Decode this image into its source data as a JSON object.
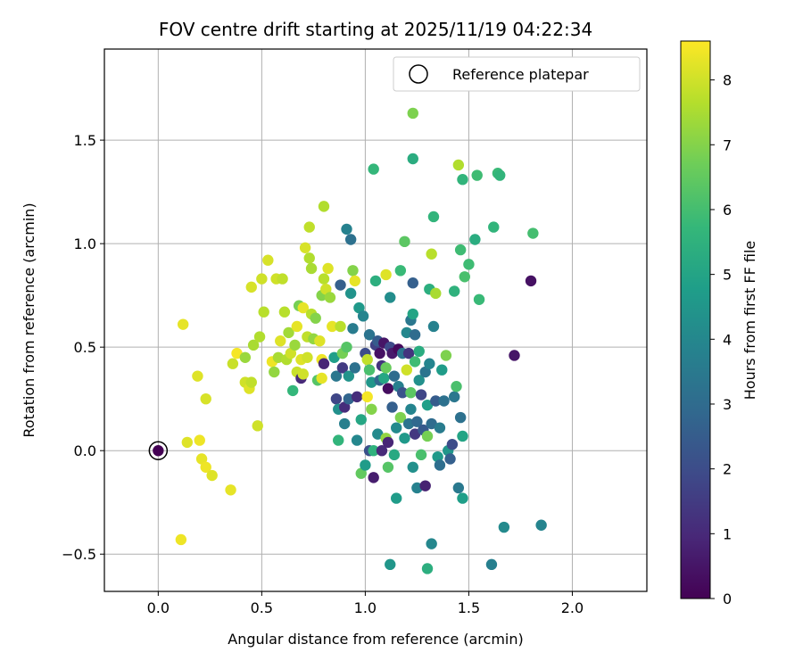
{
  "chart_data": {
    "type": "scatter",
    "title": "FOV centre drift starting at 2025/11/19 04:22:34",
    "xlabel": "Angular distance from reference (arcmin)",
    "ylabel": "Rotation from reference (arcmin)",
    "xlim": [
      -0.26,
      2.36
    ],
    "ylim": [
      -0.68,
      1.94
    ],
    "xticks": [
      0.0,
      0.5,
      1.0,
      1.5,
      2.0
    ],
    "xtick_labels": [
      "0.0",
      "0.5",
      "1.0",
      "1.5",
      "2.0"
    ],
    "yticks": [
      -0.5,
      0.0,
      0.5,
      1.0,
      1.5
    ],
    "ytick_labels": [
      "−0.5",
      "0.0",
      "0.5",
      "1.0",
      "1.5"
    ],
    "grid": true,
    "legend": {
      "position": "top-right",
      "entries": [
        "Reference platepar"
      ]
    },
    "colorbar": {
      "label": "Hours from first FF file",
      "range": [
        0,
        8.6
      ],
      "ticks": [
        0,
        1,
        2,
        3,
        4,
        5,
        6,
        7,
        8
      ],
      "tick_labels": [
        "0",
        "1",
        "2",
        "3",
        "4",
        "5",
        "6",
        "7",
        "8"
      ],
      "colormap": "viridis"
    },
    "reference_point": {
      "x": 0.0,
      "y": 0.0,
      "c": 0.0
    },
    "points": [
      {
        "x": 0.11,
        "y": -0.43,
        "c": 8.4
      },
      {
        "x": 0.12,
        "y": 0.61,
        "c": 8.3
      },
      {
        "x": 0.14,
        "y": 0.04,
        "c": 8.2
      },
      {
        "x": 0.19,
        "y": 0.36,
        "c": 8.2
      },
      {
        "x": 0.2,
        "y": 0.05,
        "c": 8.4
      },
      {
        "x": 0.21,
        "y": -0.04,
        "c": 8.3
      },
      {
        "x": 0.23,
        "y": -0.08,
        "c": 8.4
      },
      {
        "x": 0.23,
        "y": 0.25,
        "c": 8.1
      },
      {
        "x": 0.26,
        "y": -0.12,
        "c": 8.2
      },
      {
        "x": 0.35,
        "y": -0.19,
        "c": 8.3
      },
      {
        "x": 0.36,
        "y": 0.42,
        "c": 7.9
      },
      {
        "x": 0.38,
        "y": 0.47,
        "c": 8.5
      },
      {
        "x": 0.42,
        "y": 0.33,
        "c": 8.0
      },
      {
        "x": 0.42,
        "y": 0.45,
        "c": 7.3
      },
      {
        "x": 0.44,
        "y": 0.3,
        "c": 8.2
      },
      {
        "x": 0.45,
        "y": 0.33,
        "c": 7.8
      },
      {
        "x": 0.45,
        "y": 0.79,
        "c": 8.1
      },
      {
        "x": 0.46,
        "y": 0.51,
        "c": 7.5
      },
      {
        "x": 0.48,
        "y": 0.12,
        "c": 8.0
      },
      {
        "x": 0.49,
        "y": 0.55,
        "c": 7.6
      },
      {
        "x": 0.5,
        "y": 0.83,
        "c": 8.0
      },
      {
        "x": 0.51,
        "y": 0.67,
        "c": 7.7
      },
      {
        "x": 0.53,
        "y": 0.92,
        "c": 8.1
      },
      {
        "x": 0.55,
        "y": 0.43,
        "c": 8.4
      },
      {
        "x": 0.56,
        "y": 0.38,
        "c": 7.2
      },
      {
        "x": 0.57,
        "y": 0.83,
        "c": 8.0
      },
      {
        "x": 0.58,
        "y": 0.45,
        "c": 7.5
      },
      {
        "x": 0.59,
        "y": 0.53,
        "c": 8.2
      },
      {
        "x": 0.6,
        "y": 0.83,
        "c": 7.8
      },
      {
        "x": 0.61,
        "y": 0.67,
        "c": 7.7
      },
      {
        "x": 0.62,
        "y": 0.44,
        "c": 7.6
      },
      {
        "x": 0.63,
        "y": 0.57,
        "c": 7.4
      },
      {
        "x": 0.64,
        "y": 0.47,
        "c": 8.0
      },
      {
        "x": 0.65,
        "y": 0.29,
        "c": 5.7
      },
      {
        "x": 0.66,
        "y": 0.51,
        "c": 7.3
      },
      {
        "x": 0.67,
        "y": 0.6,
        "c": 8.3
      },
      {
        "x": 0.67,
        "y": 0.38,
        "c": 7.9
      },
      {
        "x": 0.68,
        "y": 0.7,
        "c": 6.8
      },
      {
        "x": 0.69,
        "y": 0.35,
        "c": 1.0
      },
      {
        "x": 0.69,
        "y": 0.44,
        "c": 8.2
      },
      {
        "x": 0.7,
        "y": 0.69,
        "c": 8.3
      },
      {
        "x": 0.7,
        "y": 0.37,
        "c": 8.0
      },
      {
        "x": 0.71,
        "y": 0.98,
        "c": 8.1
      },
      {
        "x": 0.72,
        "y": 0.55,
        "c": 7.8
      },
      {
        "x": 0.72,
        "y": 0.45,
        "c": 8.0
      },
      {
        "x": 0.73,
        "y": 1.08,
        "c": 7.8
      },
      {
        "x": 0.73,
        "y": 0.93,
        "c": 7.6
      },
      {
        "x": 0.74,
        "y": 0.88,
        "c": 7.5
      },
      {
        "x": 0.74,
        "y": 0.66,
        "c": 7.7
      },
      {
        "x": 0.75,
        "y": 0.54,
        "c": 7.2
      },
      {
        "x": 0.76,
        "y": 0.64,
        "c": 7.0
      },
      {
        "x": 0.77,
        "y": 0.34,
        "c": 6.3
      },
      {
        "x": 0.78,
        "y": 0.53,
        "c": 8.2
      },
      {
        "x": 0.79,
        "y": 0.75,
        "c": 7.0
      },
      {
        "x": 0.79,
        "y": 0.44,
        "c": 8.4
      },
      {
        "x": 0.79,
        "y": 0.35,
        "c": 8.3
      },
      {
        "x": 0.8,
        "y": 0.83,
        "c": 7.7
      },
      {
        "x": 0.8,
        "y": 1.18,
        "c": 7.6
      },
      {
        "x": 0.8,
        "y": 0.42,
        "c": 0.9
      },
      {
        "x": 0.81,
        "y": 0.78,
        "c": 8.0
      },
      {
        "x": 0.82,
        "y": 0.88,
        "c": 8.2
      },
      {
        "x": 0.83,
        "y": 0.74,
        "c": 7.3
      },
      {
        "x": 0.84,
        "y": 0.6,
        "c": 8.3
      },
      {
        "x": 0.85,
        "y": 0.45,
        "c": 4.8
      },
      {
        "x": 0.86,
        "y": 0.36,
        "c": 3.4
      },
      {
        "x": 0.86,
        "y": 0.25,
        "c": 1.8
      },
      {
        "x": 0.87,
        "y": 0.05,
        "c": 5.6
      },
      {
        "x": 0.87,
        "y": 0.2,
        "c": 4.3
      },
      {
        "x": 0.88,
        "y": 0.6,
        "c": 7.7
      },
      {
        "x": 0.88,
        "y": 0.8,
        "c": 2.6
      },
      {
        "x": 0.89,
        "y": 0.4,
        "c": 1.5
      },
      {
        "x": 0.89,
        "y": 0.47,
        "c": 6.8
      },
      {
        "x": 0.9,
        "y": 0.21,
        "c": 1.1
      },
      {
        "x": 0.9,
        "y": 0.13,
        "c": 3.7
      },
      {
        "x": 0.91,
        "y": 1.07,
        "c": 3.8
      },
      {
        "x": 0.91,
        "y": 0.5,
        "c": 6.3
      },
      {
        "x": 0.92,
        "y": 0.36,
        "c": 4.4
      },
      {
        "x": 0.92,
        "y": 0.25,
        "c": 2.8
      },
      {
        "x": 0.93,
        "y": 1.02,
        "c": 3.2
      },
      {
        "x": 0.93,
        "y": 0.76,
        "c": 4.4
      },
      {
        "x": 0.94,
        "y": 0.87,
        "c": 7.0
      },
      {
        "x": 0.94,
        "y": 0.59,
        "c": 3.6
      },
      {
        "x": 0.95,
        "y": 0.82,
        "c": 8.3
      },
      {
        "x": 0.95,
        "y": 0.4,
        "c": 3.2
      },
      {
        "x": 0.96,
        "y": 0.26,
        "c": 1.1
      },
      {
        "x": 0.96,
        "y": 0.05,
        "c": 4.0
      },
      {
        "x": 0.97,
        "y": 0.69,
        "c": 4.6
      },
      {
        "x": 0.98,
        "y": -0.11,
        "c": 6.5
      },
      {
        "x": 0.98,
        "y": 0.15,
        "c": 5.1
      },
      {
        "x": 0.99,
        "y": 0.65,
        "c": 3.9
      },
      {
        "x": 1.0,
        "y": -0.07,
        "c": 4.7
      },
      {
        "x": 1.0,
        "y": 0.47,
        "c": 2.0
      },
      {
        "x": 1.01,
        "y": 0.26,
        "c": 8.5
      },
      {
        "x": 1.01,
        "y": 0.44,
        "c": 7.8
      },
      {
        "x": 1.02,
        "y": 0.56,
        "c": 3.3
      },
      {
        "x": 1.02,
        "y": 0.39,
        "c": 6.1
      },
      {
        "x": 1.02,
        "y": 0.0,
        "c": 2.1
      },
      {
        "x": 1.03,
        "y": 0.33,
        "c": 4.5
      },
      {
        "x": 1.03,
        "y": 0.2,
        "c": 7.0
      },
      {
        "x": 1.04,
        "y": 1.36,
        "c": 5.7
      },
      {
        "x": 1.04,
        "y": 0.0,
        "c": 5.5
      },
      {
        "x": 1.04,
        "y": -0.13,
        "c": 0.7
      },
      {
        "x": 1.05,
        "y": 0.51,
        "c": 1.7
      },
      {
        "x": 1.05,
        "y": 0.82,
        "c": 5.4
      },
      {
        "x": 1.06,
        "y": 0.08,
        "c": 4.1
      },
      {
        "x": 1.06,
        "y": 0.53,
        "c": 2.5
      },
      {
        "x": 1.07,
        "y": 0.34,
        "c": 2.9
      },
      {
        "x": 1.07,
        "y": 0.47,
        "c": 0.4
      },
      {
        "x": 1.08,
        "y": 0.0,
        "c": 1.0
      },
      {
        "x": 1.08,
        "y": 0.41,
        "c": 1.3
      },
      {
        "x": 1.09,
        "y": 0.35,
        "c": 5.1
      },
      {
        "x": 1.09,
        "y": 0.52,
        "c": 0.5
      },
      {
        "x": 1.1,
        "y": 0.06,
        "c": 7.2
      },
      {
        "x": 1.1,
        "y": 0.85,
        "c": 8.2
      },
      {
        "x": 1.1,
        "y": 0.4,
        "c": 6.6
      },
      {
        "x": 1.11,
        "y": 0.04,
        "c": 0.9
      },
      {
        "x": 1.11,
        "y": 0.3,
        "c": 0.3
      },
      {
        "x": 1.11,
        "y": -0.08,
        "c": 6.3
      },
      {
        "x": 1.12,
        "y": 0.5,
        "c": 1.9
      },
      {
        "x": 1.12,
        "y": 0.74,
        "c": 4.2
      },
      {
        "x": 1.12,
        "y": -0.55,
        "c": 4.5
      },
      {
        "x": 1.13,
        "y": 0.21,
        "c": 2.6
      },
      {
        "x": 1.13,
        "y": 0.47,
        "c": 0.6
      },
      {
        "x": 1.14,
        "y": 0.36,
        "c": 3.0
      },
      {
        "x": 1.14,
        "y": -0.02,
        "c": 5.2
      },
      {
        "x": 1.15,
        "y": 0.11,
        "c": 4.1
      },
      {
        "x": 1.15,
        "y": -0.23,
        "c": 4.7
      },
      {
        "x": 1.16,
        "y": 0.49,
        "c": 0.2
      },
      {
        "x": 1.16,
        "y": 0.31,
        "c": 3.7
      },
      {
        "x": 1.17,
        "y": 0.87,
        "c": 5.8
      },
      {
        "x": 1.17,
        "y": 0.16,
        "c": 6.9
      },
      {
        "x": 1.18,
        "y": 0.47,
        "c": 3.3
      },
      {
        "x": 1.18,
        "y": 0.28,
        "c": 2.2
      },
      {
        "x": 1.19,
        "y": 1.01,
        "c": 6.4
      },
      {
        "x": 1.19,
        "y": 0.06,
        "c": 4.6
      },
      {
        "x": 1.2,
        "y": 0.39,
        "c": 8.0
      },
      {
        "x": 1.2,
        "y": 0.57,
        "c": 4.0
      },
      {
        "x": 1.21,
        "y": 0.47,
        "c": 1.3
      },
      {
        "x": 1.21,
        "y": 0.13,
        "c": 3.3
      },
      {
        "x": 1.22,
        "y": 0.63,
        "c": 3.4
      },
      {
        "x": 1.22,
        "y": 0.28,
        "c": 6.4
      },
      {
        "x": 1.22,
        "y": 0.2,
        "c": 3.9
      },
      {
        "x": 1.23,
        "y": 1.63,
        "c": 6.9
      },
      {
        "x": 1.23,
        "y": 1.41,
        "c": 5.3
      },
      {
        "x": 1.23,
        "y": 0.81,
        "c": 2.6
      },
      {
        "x": 1.23,
        "y": 0.66,
        "c": 5.0
      },
      {
        "x": 1.23,
        "y": -0.08,
        "c": 4.3
      },
      {
        "x": 1.24,
        "y": 0.08,
        "c": 1.4
      },
      {
        "x": 1.24,
        "y": 0.43,
        "c": 5.9
      },
      {
        "x": 1.24,
        "y": 0.56,
        "c": 3.0
      },
      {
        "x": 1.25,
        "y": -0.18,
        "c": 3.8
      },
      {
        "x": 1.25,
        "y": 0.14,
        "c": 2.9
      },
      {
        "x": 1.26,
        "y": 0.48,
        "c": 5.3
      },
      {
        "x": 1.26,
        "y": 0.34,
        "c": 4.3
      },
      {
        "x": 1.27,
        "y": -0.02,
        "c": 6.1
      },
      {
        "x": 1.27,
        "y": 0.27,
        "c": 1.8
      },
      {
        "x": 1.28,
        "y": 0.1,
        "c": 2.4
      },
      {
        "x": 1.29,
        "y": 0.38,
        "c": 3.3
      },
      {
        "x": 1.29,
        "y": -0.17,
        "c": 0.8
      },
      {
        "x": 1.3,
        "y": 0.22,
        "c": 4.8
      },
      {
        "x": 1.3,
        "y": 0.07,
        "c": 6.8
      },
      {
        "x": 1.3,
        "y": -0.57,
        "c": 5.4
      },
      {
        "x": 1.31,
        "y": 0.78,
        "c": 5.4
      },
      {
        "x": 1.31,
        "y": 0.42,
        "c": 3.9
      },
      {
        "x": 1.32,
        "y": 0.95,
        "c": 7.7
      },
      {
        "x": 1.32,
        "y": 0.13,
        "c": 3.0
      },
      {
        "x": 1.32,
        "y": -0.45,
        "c": 4.0
      },
      {
        "x": 1.33,
        "y": 1.13,
        "c": 5.6
      },
      {
        "x": 1.33,
        "y": 0.6,
        "c": 3.8
      },
      {
        "x": 1.34,
        "y": 0.76,
        "c": 7.5
      },
      {
        "x": 1.34,
        "y": 0.24,
        "c": 2.5
      },
      {
        "x": 1.35,
        "y": -0.03,
        "c": 4.6
      },
      {
        "x": 1.36,
        "y": 0.11,
        "c": 3.6
      },
      {
        "x": 1.36,
        "y": -0.07,
        "c": 3.1
      },
      {
        "x": 1.37,
        "y": 0.39,
        "c": 4.7
      },
      {
        "x": 1.38,
        "y": 0.24,
        "c": 3.2
      },
      {
        "x": 1.39,
        "y": 0.46,
        "c": 6.9
      },
      {
        "x": 1.4,
        "y": 0.0,
        "c": 4.5
      },
      {
        "x": 1.41,
        "y": -0.04,
        "c": 2.6
      },
      {
        "x": 1.42,
        "y": 0.03,
        "c": 2.0
      },
      {
        "x": 1.43,
        "y": 0.77,
        "c": 5.5
      },
      {
        "x": 1.43,
        "y": 0.26,
        "c": 3.4
      },
      {
        "x": 1.44,
        "y": 0.31,
        "c": 6.1
      },
      {
        "x": 1.45,
        "y": 1.38,
        "c": 7.6
      },
      {
        "x": 1.45,
        "y": -0.18,
        "c": 3.5
      },
      {
        "x": 1.46,
        "y": 0.16,
        "c": 3.2
      },
      {
        "x": 1.46,
        "y": 0.97,
        "c": 5.9
      },
      {
        "x": 1.47,
        "y": 0.07,
        "c": 5.0
      },
      {
        "x": 1.47,
        "y": 1.31,
        "c": 5.6
      },
      {
        "x": 1.47,
        "y": -0.23,
        "c": 4.8
      },
      {
        "x": 1.48,
        "y": 0.84,
        "c": 6.1
      },
      {
        "x": 1.5,
        "y": 0.9,
        "c": 5.9
      },
      {
        "x": 1.53,
        "y": 1.02,
        "c": 5.3
      },
      {
        "x": 1.54,
        "y": 1.33,
        "c": 5.9
      },
      {
        "x": 1.55,
        "y": 0.73,
        "c": 5.8
      },
      {
        "x": 1.61,
        "y": -0.55,
        "c": 3.7
      },
      {
        "x": 1.62,
        "y": 1.08,
        "c": 5.6
      },
      {
        "x": 1.64,
        "y": 1.34,
        "c": 5.8
      },
      {
        "x": 1.65,
        "y": 1.33,
        "c": 5.6
      },
      {
        "x": 1.67,
        "y": -0.37,
        "c": 4.1
      },
      {
        "x": 1.72,
        "y": 0.46,
        "c": 0.5
      },
      {
        "x": 1.8,
        "y": 0.82,
        "c": 0.4
      },
      {
        "x": 1.81,
        "y": 1.05,
        "c": 6.0
      },
      {
        "x": 1.85,
        "y": -0.36,
        "c": 3.9
      }
    ]
  }
}
